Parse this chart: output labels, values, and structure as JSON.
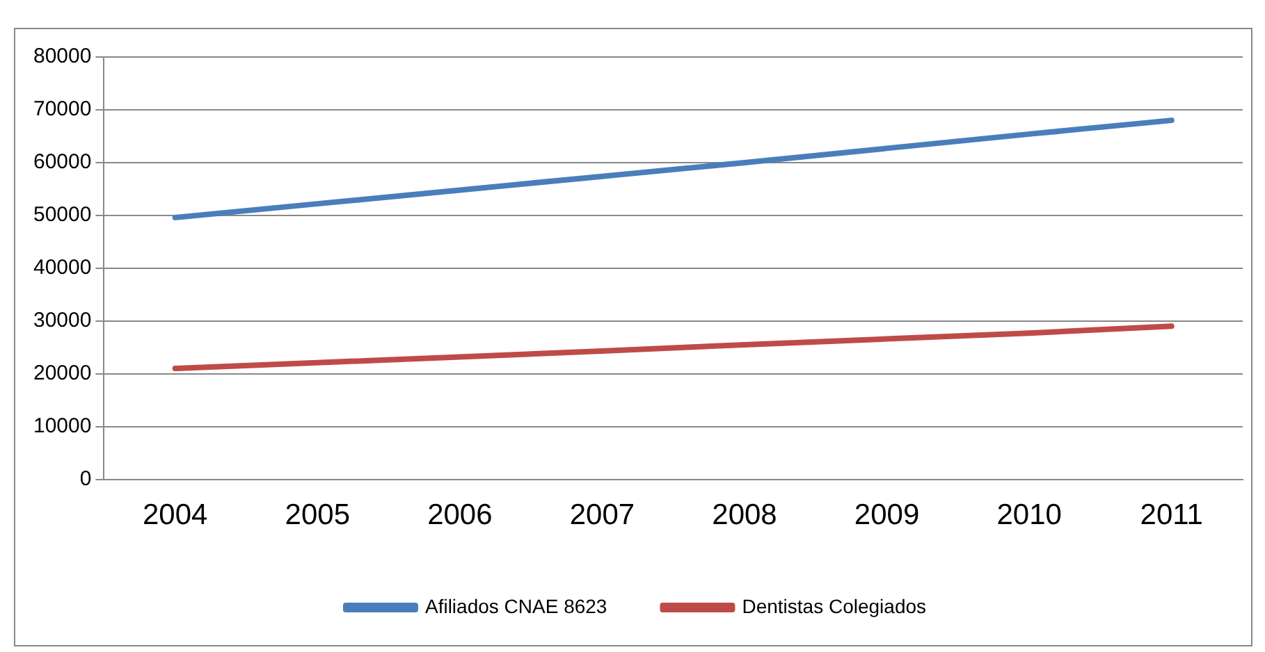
{
  "chart_data": {
    "type": "line",
    "categories": [
      "2004",
      "2005",
      "2006",
      "2007",
      "2008",
      "2009",
      "2010",
      "2011"
    ],
    "series": [
      {
        "name": "Afiliados CNAE 8623",
        "color": "#4a7ebb",
        "values": [
          49600,
          52200,
          54800,
          57400,
          60000,
          62700,
          65400,
          68000
        ]
      },
      {
        "name": "Dentistas Colegiados",
        "color": "#be4b48",
        "values": [
          21000,
          22100,
          23200,
          24300,
          25500,
          26600,
          27700,
          29000
        ]
      }
    ],
    "ylim": [
      0,
      80000
    ],
    "yticks": [
      0,
      10000,
      20000,
      30000,
      40000,
      50000,
      60000,
      70000,
      80000
    ],
    "grid": "y",
    "legend": "bottom",
    "marker": "none",
    "line_style": "solid"
  }
}
